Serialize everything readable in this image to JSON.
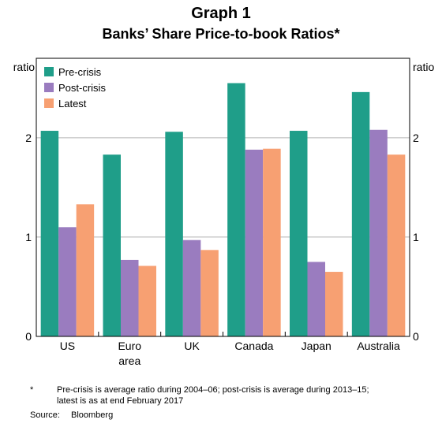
{
  "header": {
    "graph_number": "Graph 1",
    "title": "Banks’ Share Price-to-book Ratios*"
  },
  "chart_data": {
    "type": "bar",
    "categories": [
      [
        "US"
      ],
      [
        "Euro",
        "area"
      ],
      [
        "UK"
      ],
      [
        "Canada"
      ],
      [
        "Japan"
      ],
      [
        "Australia"
      ]
    ],
    "series": [
      {
        "name": "Pre-crisis",
        "color": "#1f9e89",
        "values": [
          2.07,
          1.83,
          2.06,
          2.55,
          2.07,
          2.46
        ]
      },
      {
        "name": "Post-crisis",
        "color": "#9a7cbf",
        "values": [
          1.1,
          0.77,
          0.97,
          1.88,
          0.75,
          2.08
        ]
      },
      {
        "name": "Latest",
        "color": "#f7a072",
        "values": [
          1.33,
          0.71,
          0.87,
          1.89,
          0.65,
          1.83
        ]
      }
    ],
    "ylim": [
      0,
      2.8
    ],
    "yticks": [
      0,
      1,
      2
    ],
    "ylabel_left": "ratio",
    "ylabel_right": "ratio",
    "grid": true,
    "legend_position": "top-left"
  },
  "footnotes": {
    "mark": "*",
    "text": "Pre-crisis is average ratio during 2004–06; post-crisis is average during 2013–15; latest is as at end February 2017",
    "source_label": "Source:",
    "source_value": "Bloomberg"
  }
}
